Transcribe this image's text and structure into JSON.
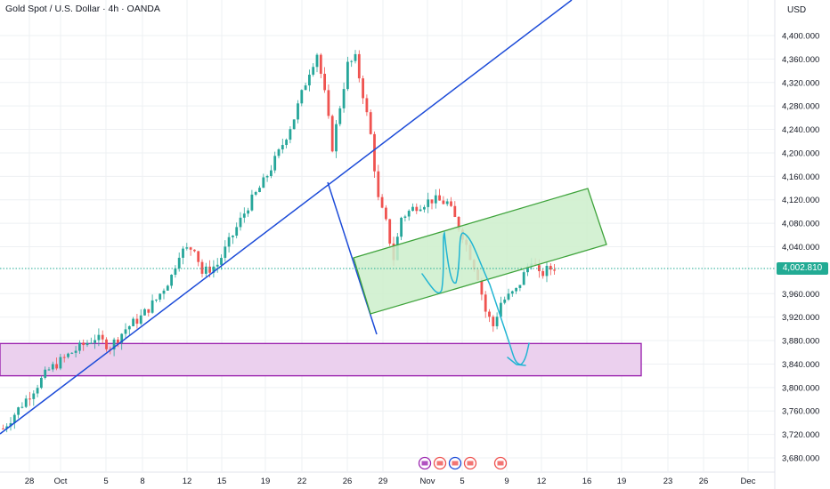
{
  "header": {
    "title": "Gold Spot / U.S. Dollar · 4h · OANDA",
    "currency": "USD",
    "last_price_label": "4,002.810"
  },
  "colors": {
    "up": "#26a69a",
    "down": "#ef5350",
    "trendline": "#1c4bd8",
    "channel_fill": "#cdeecb",
    "channel_stroke": "#3ea33b",
    "zone_fill": "#ebd0ee",
    "zone_stroke": "#9c27b0",
    "projection": "#22b5d3",
    "grid": "#eef0f3",
    "price_line": "#22ab94"
  },
  "chart_data": {
    "type": "candlestick",
    "y_axis": {
      "ticks": [
        "4,400.000",
        "4,360.000",
        "4,320.000",
        "4,280.000",
        "4,240.000",
        "4,200.000",
        "4,160.000",
        "4,120.000",
        "4,080.000",
        "4,040.000",
        "3,960.000",
        "3,920.000",
        "3,880.000",
        "3,840.000",
        "3,800.000",
        "3,760.000",
        "3,720.000",
        "3,680.000"
      ],
      "range": [
        3660,
        4440
      ]
    },
    "x_axis": {
      "ticks": [
        "28",
        "Oct",
        "5",
        "8",
        "12",
        "15",
        "19",
        "22",
        "26",
        "29",
        "Nov",
        "5",
        "9",
        "12",
        "16",
        "19",
        "23",
        "26",
        "Dec"
      ]
    },
    "last_price": 4002.81,
    "ohlc_path": [
      [
        0,
        3730
      ],
      [
        3,
        3780
      ],
      [
        6,
        3830
      ],
      [
        9,
        3860
      ],
      [
        12,
        3885
      ],
      [
        14,
        3870
      ],
      [
        16,
        3900
      ],
      [
        18,
        3920
      ],
      [
        20,
        3950
      ],
      [
        22,
        3990
      ],
      [
        23,
        4030
      ],
      [
        25,
        4040
      ],
      [
        26,
        3995
      ],
      [
        28,
        4010
      ],
      [
        30,
        4060
      ],
      [
        32,
        4110
      ],
      [
        34,
        4150
      ],
      [
        36,
        4200
      ],
      [
        38,
        4260
      ],
      [
        40,
        4340
      ],
      [
        41,
        4370
      ],
      [
        42,
        4300
      ],
      [
        43,
        4210
      ],
      [
        44,
        4280
      ],
      [
        45,
        4350
      ],
      [
        46,
        4360
      ],
      [
        47,
        4300
      ],
      [
        48,
        4230
      ],
      [
        49,
        4120
      ],
      [
        50,
        4080
      ],
      [
        51,
        4020
      ],
      [
        52,
        4090
      ],
      [
        54,
        4110
      ],
      [
        56,
        4120
      ],
      [
        58,
        4115
      ],
      [
        60,
        4060
      ],
      [
        62,
        3990
      ],
      [
        63,
        3930
      ],
      [
        64,
        3905
      ],
      [
        65,
        3945
      ],
      [
        67,
        3965
      ],
      [
        69,
        4020
      ],
      [
        70,
        3990
      ],
      [
        71,
        4000
      ],
      [
        72,
        4005
      ]
    ],
    "annotations": {
      "support_zone": [
        3820,
        3875
      ],
      "rising_channel_lower": [
        [
          58,
          3970
        ],
        [
          99,
          4045
        ]
      ],
      "rising_channel_upper": [
        [
          58,
          4020
        ],
        [
          99,
          4140
        ]
      ]
    }
  }
}
